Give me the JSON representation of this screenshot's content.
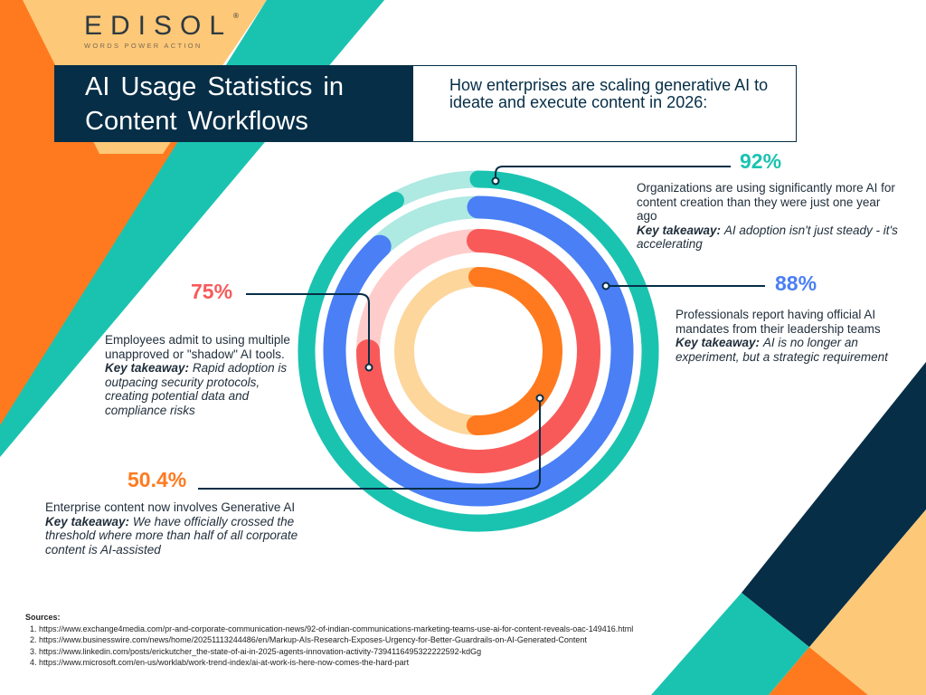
{
  "logo": {
    "name": "EDISOL",
    "tagline": "WORDS POWER ACTION",
    "registered": "®"
  },
  "header": {
    "title": "AI Usage Statistics in Content Workflows",
    "subtitle": "How enterprises are scaling generative AI to ideate and execute content in 2026:"
  },
  "colors": {
    "teal": "#1ac3b0",
    "blue": "#4a7ff5",
    "red": "#f85a5a",
    "orange": "#ff7a1f",
    "navy": "#062e47",
    "yellow": "#fdc878"
  },
  "stats": [
    {
      "value": "92%",
      "text": "Organizations are using significantly more AI for content creation than they were just one year ago",
      "key_label": "Key takeaway:",
      "takeaway": "AI adoption isn't just steady - it's accelerating"
    },
    {
      "value": "88%",
      "text": "Professionals report having official AI mandates from their leadership teams",
      "key_label": "Key takeaway:",
      "takeaway": "AI is no longer an experiment, but a strategic requirement"
    },
    {
      "value": "75%",
      "text": "Employees admit to using multiple unapproved or \"shadow\" AI tools.",
      "key_label": "Key takeaway:",
      "takeaway": "Rapid adoption is outpacing security protocols, creating potential data and compliance risks"
    },
    {
      "value": "50.4%",
      "text": "Enterprise content now involves Generative AI",
      "key_label": "Key takeaway:",
      "takeaway": "We have officially crossed the threshold where more than half of all corporate content is AI-assisted"
    }
  ],
  "chart_data": {
    "type": "radial-bar",
    "title": "AI Usage Statistics in Content Workflows",
    "unit": "%",
    "max": 100,
    "series": [
      {
        "name": "More AI for content creation vs. last year",
        "value": 92,
        "color": "#1ac3b0",
        "track": "#aee9e2"
      },
      {
        "name": "Official AI mandates from leadership",
        "value": 88,
        "color": "#4a7ff5",
        "track": "#aee9e2"
      },
      {
        "name": "Using unapproved shadow AI tools",
        "value": 75,
        "color": "#f85a5a",
        "track": "#ffcccc"
      },
      {
        "name": "Enterprise content involving Generative AI",
        "value": 50.4,
        "color": "#ff7a1f",
        "track": "#fdd69c"
      }
    ]
  },
  "sources": {
    "heading": "Sources:",
    "items": [
      "https://www.exchange4media.com/pr-and-corporate-communication-news/92-of-indian-communications-marketing-teams-use-ai-for-content-reveals-oac-149416.html",
      "https://www.businesswire.com/news/home/20251113244486/en/Markup-AIs-Research-Exposes-Urgency-for-Better-Guardrails-on-AI-Generated-Content",
      "https://www.linkedin.com/posts/erickutcher_the-state-of-ai-in-2025-agents-innovation-activity-7394116495322222592-kdGg",
      "https://www.microsoft.com/en-us/worklab/work-trend-index/ai-at-work-is-here-now-comes-the-hard-part"
    ]
  }
}
